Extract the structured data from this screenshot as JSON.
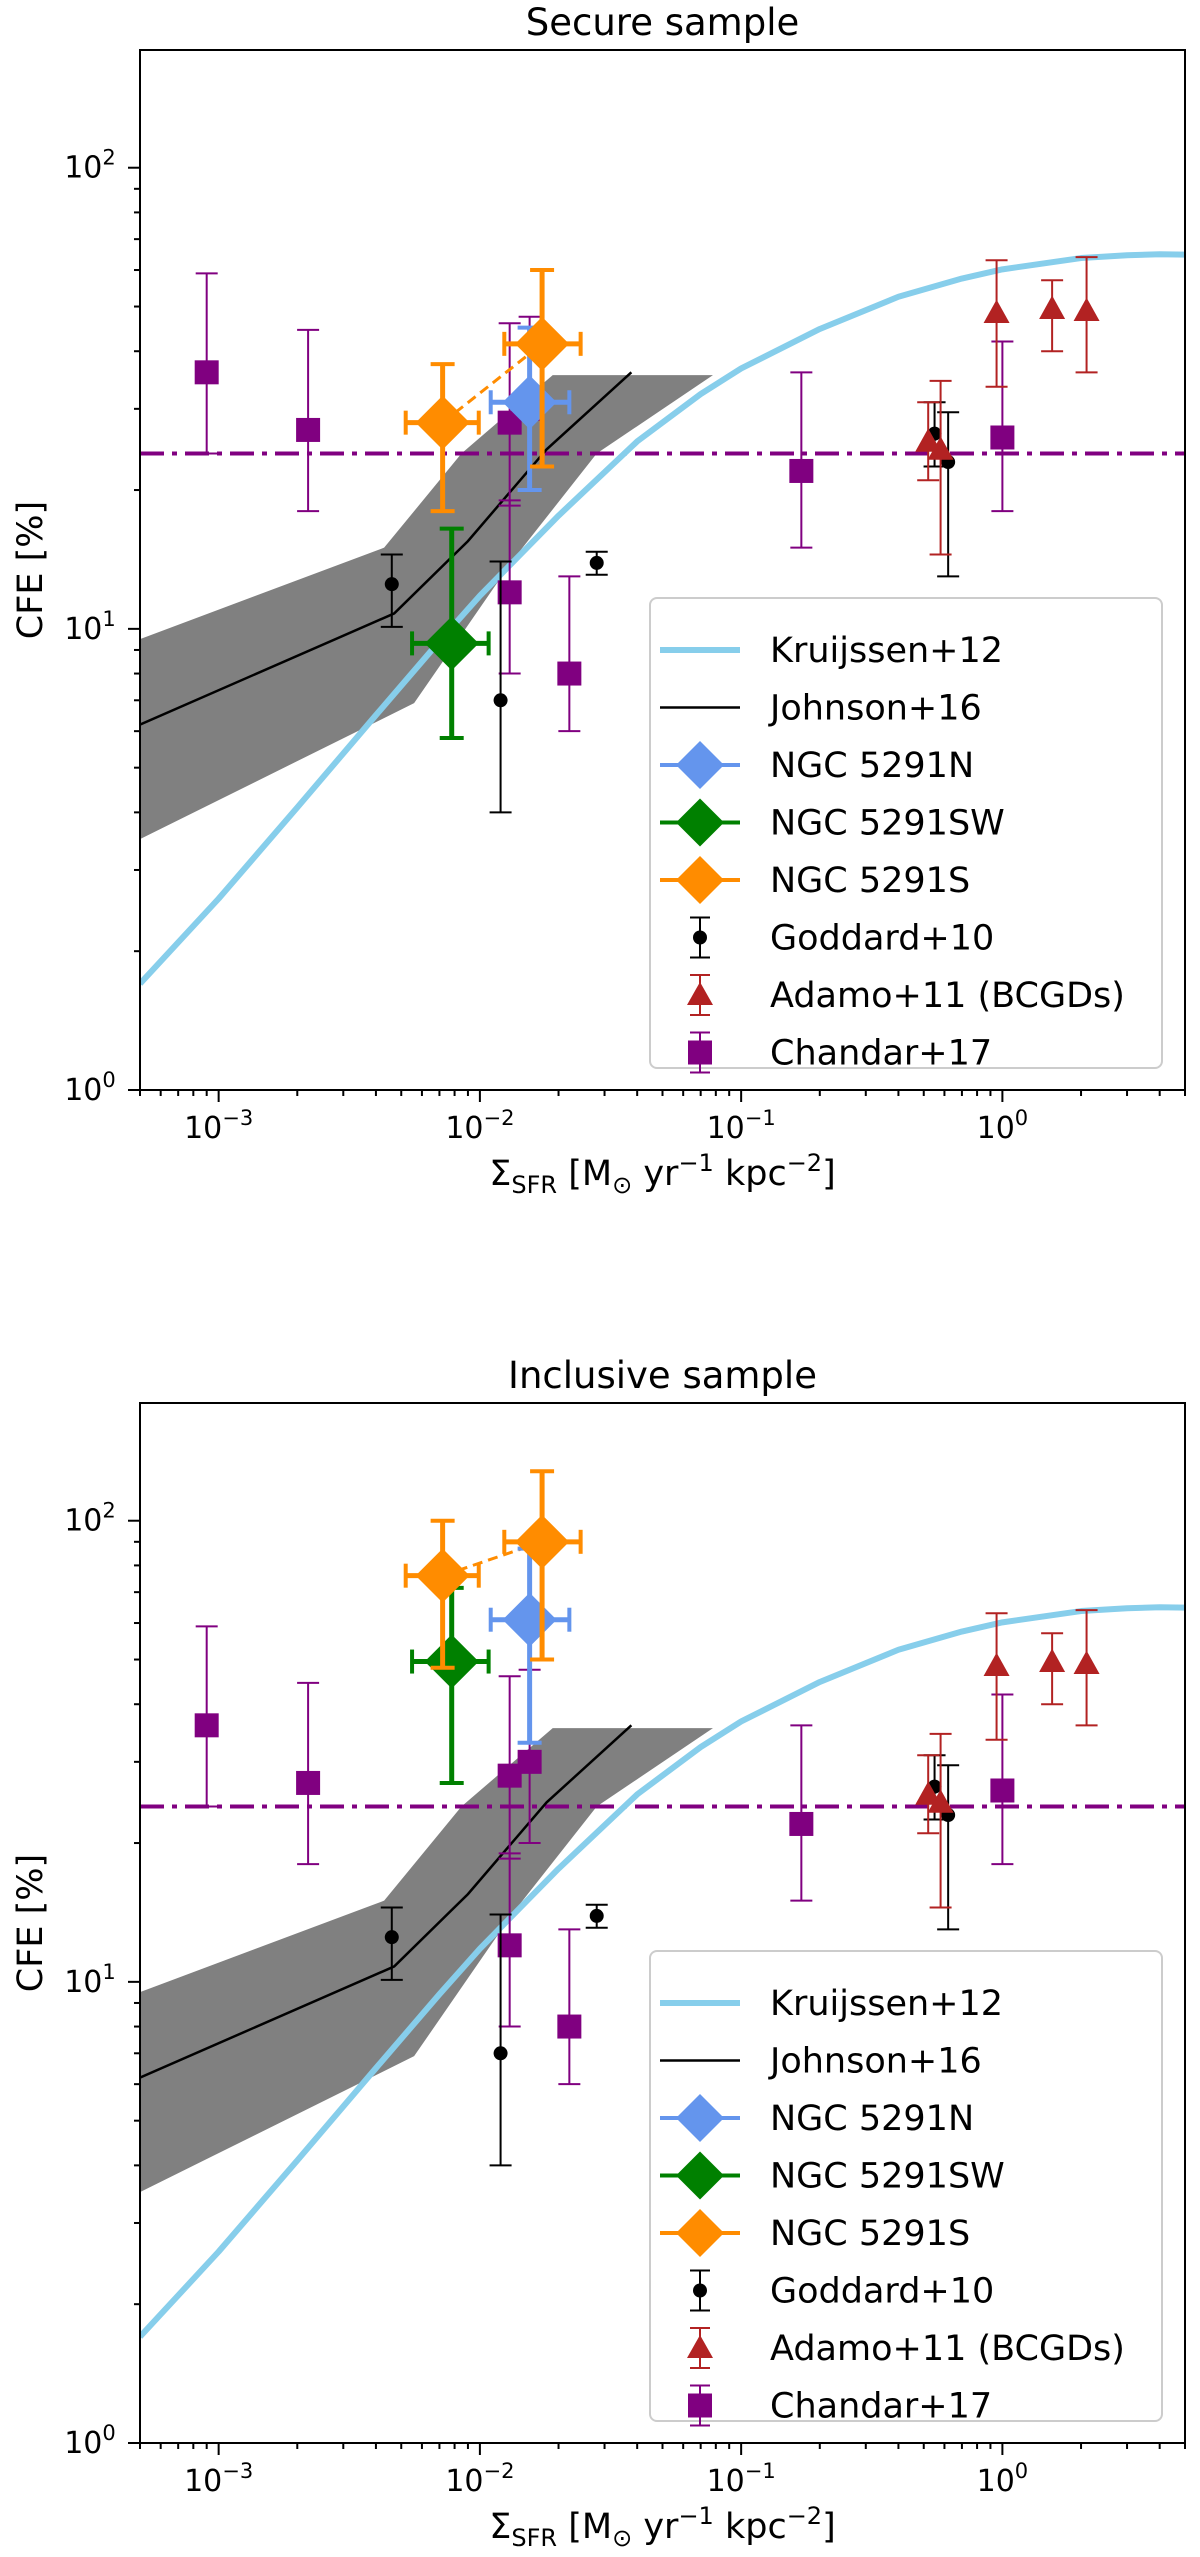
{
  "chart_data": [
    {
      "type": "scatter",
      "title": "Secure sample",
      "xlabel_main": "Σ",
      "xlabel_sub": "SFR",
      "xlabel_units_pre": " [M",
      "xlabel_units_sun": "⊙",
      "xlabel_units_yr": " yr",
      "xlabel_units_exp1": "−1",
      "xlabel_units_kpc": " kpc",
      "xlabel_units_exp2": "−2",
      "xlabel_units_post": "]",
      "ylabel": "CFE [%]",
      "xscale": "log",
      "yscale": "log",
      "xlim": [
        0.0005,
        5
      ],
      "ylim": [
        1,
        180
      ],
      "xticks": [
        {
          "v": 0.001,
          "base": "10",
          "exp": "−3"
        },
        {
          "v": 0.01,
          "base": "10",
          "exp": "−2"
        },
        {
          "v": 0.1,
          "base": "10",
          "exp": "−1"
        },
        {
          "v": 1,
          "base": "10",
          "exp": "0"
        }
      ],
      "yticks": [
        {
          "v": 1,
          "base": "10",
          "exp": "0"
        },
        {
          "v": 10,
          "base": "10",
          "exp": "1"
        },
        {
          "v": 100,
          "base": "10",
          "exp": "2"
        }
      ],
      "hline": {
        "y": 24,
        "color": "#800080",
        "style": "dashdot"
      },
      "kruijssen": {
        "name": "Kruijssen+12",
        "color": "#87ceeb",
        "x": [
          0.0005,
          0.001,
          0.002,
          0.004,
          0.007,
          0.01,
          0.02,
          0.04,
          0.07,
          0.1,
          0.2,
          0.4,
          0.7,
          1,
          2,
          3,
          4,
          5
        ],
        "y": [
          1.7,
          2.6,
          4.1,
          6.5,
          9.4,
          11.8,
          17.6,
          25.5,
          32.3,
          36.7,
          44.7,
          52.5,
          57.5,
          60.2,
          63.7,
          64.6,
          64.9,
          64.8
        ]
      },
      "johnson": {
        "name": "Johnson+16",
        "color": "#000000",
        "x": [
          0.0005,
          0.0047,
          0.009,
          0.018,
          0.038
        ],
        "y": [
          6.2,
          10.8,
          15.5,
          24.5,
          36
        ]
      },
      "johnson_band": {
        "upper": [
          [
            0.0005,
            9.5
          ],
          [
            0.0043,
            15
          ],
          [
            0.0085,
            24
          ],
          [
            0.019,
            35.5
          ],
          [
            0.078,
            35.5
          ]
        ],
        "lower": [
          [
            0.0005,
            3.5
          ],
          [
            0.0056,
            6.9
          ],
          [
            0.0135,
            14.2
          ],
          [
            0.028,
            24
          ]
        ],
        "color": "#808080"
      },
      "ngc_connector": {
        "x": [
          0.0072,
          0.0173
        ],
        "y": [
          28,
          41.5
        ],
        "color": "#ff8c00"
      },
      "ngc": [
        {
          "name": "NGC 5291N",
          "color": "#6495ed",
          "x": 0.0155,
          "y": 31,
          "xlo": 0.011,
          "xhi": 0.022,
          "ylo": 20,
          "yhi": 45
        },
        {
          "name": "NGC 5291SW",
          "color": "#008000",
          "x": 0.0078,
          "y": 9.3,
          "xlo": 0.0055,
          "xhi": 0.0108,
          "ylo": 5.8,
          "yhi": 16.5
        },
        {
          "name": "NGC 5291S",
          "color": "#ff8c00",
          "x": 0.0072,
          "y": 28,
          "xlo": 0.0052,
          "xhi": 0.0099,
          "ylo": 18,
          "yhi": 37.5
        },
        {
          "name": "NGC 5291S",
          "color": "#ff8c00",
          "x": 0.0173,
          "y": 41.5,
          "xlo": 0.0124,
          "xhi": 0.0243,
          "ylo": 22.5,
          "yhi": 60
        }
      ],
      "goddard": {
        "name": "Goddard+10",
        "color": "#000000",
        "points": [
          {
            "x": 0.0046,
            "y": 12.5,
            "ylo": 10.1,
            "yhi": 14.5
          },
          {
            "x": 0.012,
            "y": 7,
            "ylo": 4,
            "yhi": 14
          },
          {
            "x": 0.028,
            "y": 13.9,
            "ylo": 13.1,
            "yhi": 14.7
          },
          {
            "x": 0.55,
            "y": 26.5,
            "ylo": 22.5,
            "yhi": 31
          },
          {
            "x": 0.62,
            "y": 23,
            "ylo": 13,
            "yhi": 29.5
          }
        ]
      },
      "adamo": {
        "name": "Adamo+11 (BCGDs)",
        "color": "#b22222",
        "points": [
          {
            "x": 0.52,
            "y": 25.5,
            "ylo": 21,
            "yhi": 31
          },
          {
            "x": 0.58,
            "y": 24.5,
            "ylo": 14.5,
            "yhi": 34.5
          },
          {
            "x": 0.95,
            "y": 48.5,
            "ylo": 33.5,
            "yhi": 63
          },
          {
            "x": 1.55,
            "y": 49.5,
            "ylo": 40,
            "yhi": 57
          },
          {
            "x": 2.1,
            "y": 49,
            "ylo": 36,
            "yhi": 64
          }
        ]
      },
      "chandar": {
        "name": "Chandar+17",
        "color": "#800080",
        "points": [
          {
            "x": 0.0009,
            "y": 36,
            "ylo": 24,
            "yhi": 59
          },
          {
            "x": 0.0022,
            "y": 27,
            "ylo": 18,
            "yhi": 44.5
          },
          {
            "x": 0.013,
            "y": 12,
            "ylo": 8,
            "yhi": 19
          },
          {
            "x": 0.013,
            "y": 28,
            "ylo": 18.5,
            "yhi": 46
          },
          {
            "x": 0.0155,
            "y": 30,
            "ylo": 20,
            "yhi": 47.5
          },
          {
            "x": 0.022,
            "y": 8,
            "ylo": 6,
            "yhi": 13
          },
          {
            "x": 0.17,
            "y": 22,
            "ylo": 15,
            "yhi": 36
          },
          {
            "x": 1.0,
            "y": 26,
            "ylo": 18,
            "yhi": 42
          }
        ]
      }
    },
    {
      "type": "scatter",
      "title": "Inclusive sample",
      "xlabel_main": "Σ",
      "xlabel_sub": "SFR",
      "xlabel_units_pre": " [M",
      "xlabel_units_sun": "⊙",
      "xlabel_units_yr": " yr",
      "xlabel_units_exp1": "−1",
      "xlabel_units_kpc": " kpc",
      "xlabel_units_exp2": "−2",
      "xlabel_units_post": "]",
      "ylabel": "CFE [%]",
      "xscale": "log",
      "yscale": "log",
      "xlim": [
        0.0005,
        5
      ],
      "ylim": [
        1,
        180
      ],
      "xticks": [
        {
          "v": 0.001,
          "base": "10",
          "exp": "−3"
        },
        {
          "v": 0.01,
          "base": "10",
          "exp": "−2"
        },
        {
          "v": 0.1,
          "base": "10",
          "exp": "−1"
        },
        {
          "v": 1,
          "base": "10",
          "exp": "0"
        }
      ],
      "yticks": [
        {
          "v": 1,
          "base": "10",
          "exp": "0"
        },
        {
          "v": 10,
          "base": "10",
          "exp": "1"
        },
        {
          "v": 100,
          "base": "10",
          "exp": "2"
        }
      ],
      "hline": {
        "y": 24,
        "color": "#800080",
        "style": "dashdot"
      },
      "kruijssen": {
        "name": "Kruijssen+12",
        "color": "#87ceeb",
        "x": [
          0.0005,
          0.001,
          0.002,
          0.004,
          0.007,
          0.01,
          0.02,
          0.04,
          0.07,
          0.1,
          0.2,
          0.4,
          0.7,
          1,
          2,
          3,
          4,
          5
        ],
        "y": [
          1.7,
          2.6,
          4.1,
          6.5,
          9.4,
          11.8,
          17.6,
          25.5,
          32.3,
          36.7,
          44.7,
          52.5,
          57.5,
          60.2,
          63.7,
          64.6,
          64.9,
          64.8
        ]
      },
      "johnson": {
        "name": "Johnson+16",
        "color": "#000000",
        "x": [
          0.0005,
          0.0047,
          0.009,
          0.018,
          0.038
        ],
        "y": [
          6.2,
          10.8,
          15.5,
          24.5,
          36
        ]
      },
      "johnson_band": {
        "upper": [
          [
            0.0005,
            9.5
          ],
          [
            0.0043,
            15
          ],
          [
            0.0085,
            24
          ],
          [
            0.019,
            35.5
          ],
          [
            0.078,
            35.5
          ]
        ],
        "lower": [
          [
            0.0005,
            3.5
          ],
          [
            0.0056,
            6.9
          ],
          [
            0.0135,
            14.2
          ],
          [
            0.028,
            24
          ]
        ],
        "color": "#808080"
      },
      "ngc_connector": {
        "x": [
          0.0072,
          0.0173
        ],
        "y": [
          76,
          90
        ],
        "color": "#ff8c00"
      },
      "ngc": [
        {
          "name": "NGC 5291N",
          "color": "#6495ed",
          "x": 0.0155,
          "y": 61,
          "xlo": 0.011,
          "xhi": 0.022,
          "ylo": 33,
          "yhi": 87
        },
        {
          "name": "NGC 5291SW",
          "color": "#008000",
          "x": 0.0078,
          "y": 49.5,
          "xlo": 0.0055,
          "xhi": 0.0108,
          "ylo": 27,
          "yhi": 71.5
        },
        {
          "name": "NGC 5291S",
          "color": "#ff8c00",
          "x": 0.0072,
          "y": 76,
          "xlo": 0.0052,
          "xhi": 0.0099,
          "ylo": 48,
          "yhi": 100
        },
        {
          "name": "NGC 5291S",
          "color": "#ff8c00",
          "x": 0.0173,
          "y": 90,
          "xlo": 0.0124,
          "xhi": 0.0243,
          "ylo": 50,
          "yhi": 128
        }
      ],
      "goddard": {
        "name": "Goddard+10",
        "color": "#000000",
        "points": [
          {
            "x": 0.0046,
            "y": 12.5,
            "ylo": 10.1,
            "yhi": 14.5
          },
          {
            "x": 0.012,
            "y": 7,
            "ylo": 4,
            "yhi": 14
          },
          {
            "x": 0.028,
            "y": 13.9,
            "ylo": 13.1,
            "yhi": 14.7
          },
          {
            "x": 0.55,
            "y": 26.5,
            "ylo": 22.5,
            "yhi": 31
          },
          {
            "x": 0.62,
            "y": 23,
            "ylo": 13,
            "yhi": 29.5
          }
        ]
      },
      "adamo": {
        "name": "Adamo+11 (BCGDs)",
        "color": "#b22222",
        "points": [
          {
            "x": 0.52,
            "y": 25.5,
            "ylo": 21,
            "yhi": 31
          },
          {
            "x": 0.58,
            "y": 24.5,
            "ylo": 14.5,
            "yhi": 34.5
          },
          {
            "x": 0.95,
            "y": 48.5,
            "ylo": 33.5,
            "yhi": 63
          },
          {
            "x": 1.55,
            "y": 49.5,
            "ylo": 40,
            "yhi": 57
          },
          {
            "x": 2.1,
            "y": 49,
            "ylo": 36,
            "yhi": 64
          }
        ]
      },
      "chandar": {
        "name": "Chandar+17",
        "color": "#800080",
        "points": [
          {
            "x": 0.0009,
            "y": 36,
            "ylo": 24,
            "yhi": 59
          },
          {
            "x": 0.0022,
            "y": 27,
            "ylo": 18,
            "yhi": 44.5
          },
          {
            "x": 0.013,
            "y": 12,
            "ylo": 8,
            "yhi": 19
          },
          {
            "x": 0.013,
            "y": 28,
            "ylo": 18.5,
            "yhi": 46
          },
          {
            "x": 0.0155,
            "y": 30,
            "ylo": 20,
            "yhi": 47.5
          },
          {
            "x": 0.022,
            "y": 8,
            "ylo": 6,
            "yhi": 13
          },
          {
            "x": 0.17,
            "y": 22,
            "ylo": 15,
            "yhi": 36
          },
          {
            "x": 1.0,
            "y": 26,
            "ylo": 18,
            "yhi": 42
          }
        ]
      }
    }
  ],
  "legend": [
    {
      "key": "kruijssen",
      "label": "Kruijssen+12",
      "color": "#87ceeb",
      "marker": "line-thick"
    },
    {
      "key": "johnson",
      "label": "Johnson+16",
      "color": "#000000",
      "marker": "line-thin"
    },
    {
      "key": "n5291n",
      "label": "NGC 5291N",
      "color": "#6495ed",
      "marker": "diamond"
    },
    {
      "key": "n5291sw",
      "label": "NGC 5291SW",
      "color": "#008000",
      "marker": "diamond"
    },
    {
      "key": "n5291s",
      "label": "NGC 5291S",
      "color": "#ff8c00",
      "marker": "diamond"
    },
    {
      "key": "goddard",
      "label": "Goddard+10",
      "color": "#000000",
      "marker": "dot"
    },
    {
      "key": "adamo",
      "label": "Adamo+11 (BCGDs)",
      "color": "#b22222",
      "marker": "triangle"
    },
    {
      "key": "chandar",
      "label": "Chandar+17",
      "color": "#800080",
      "marker": "square"
    }
  ]
}
